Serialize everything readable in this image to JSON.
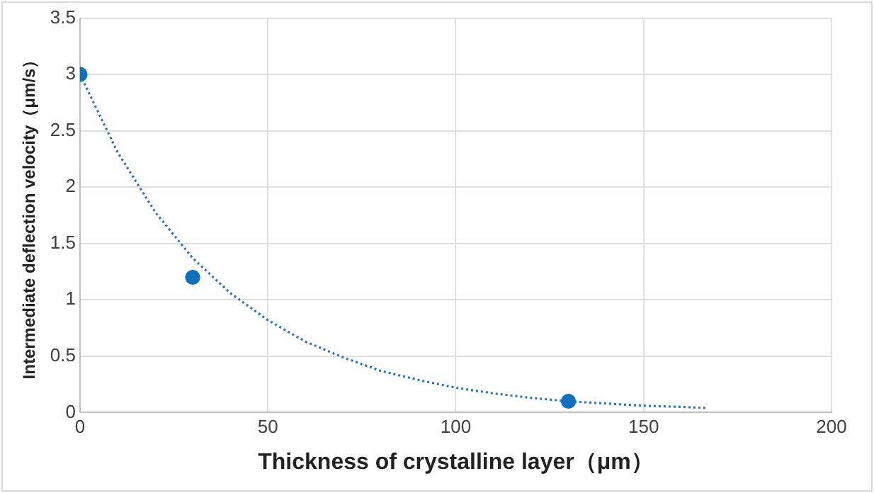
{
  "chart_data": {
    "type": "scatter",
    "xlabel": "Thickness of crystalline layer（μm）",
    "ylabel": "Intermediate deflection velocity（μm/s）",
    "xlim": [
      0,
      200
    ],
    "xticks": [
      0,
      50,
      100,
      150,
      200
    ],
    "ylim": [
      0,
      3.5
    ],
    "yticks": [
      0,
      0.5,
      1,
      1.5,
      2,
      2.5,
      3,
      3.5
    ],
    "grid": true,
    "series": [
      {
        "color": "#0f70c0",
        "marker": "circle",
        "x": [
          0,
          30,
          130
        ],
        "values": [
          3,
          1.2,
          0.1
        ]
      },
      {
        "type": "line",
        "color": "#2e75b6",
        "marker": "none",
        "line_style": "dotted",
        "x": [
          0,
          10,
          20,
          30,
          40,
          50,
          60,
          70,
          80,
          90,
          100,
          110,
          120,
          130,
          140,
          150,
          160,
          167
        ],
        "values": [
          3,
          2.31,
          1.78,
          1.37,
          1.06,
          0.82,
          0.63,
          0.49,
          0.37,
          0.29,
          0.22,
          0.17,
          0.13,
          0.1,
          0.08,
          0.06,
          0.05,
          0.04
        ]
      }
    ]
  }
}
